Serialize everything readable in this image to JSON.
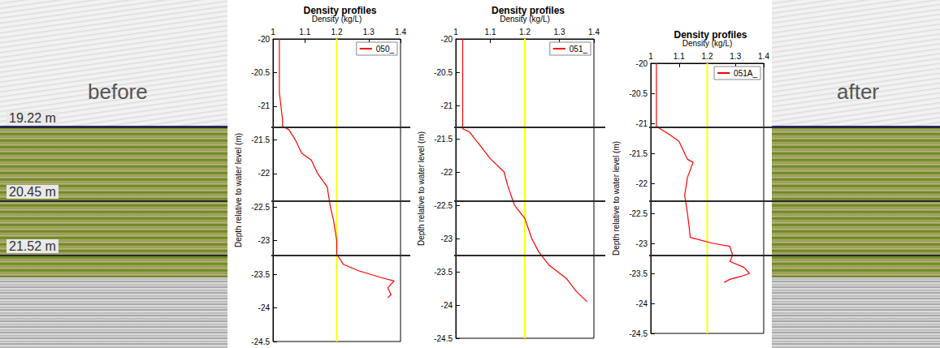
{
  "chart_data": [
    {
      "type": "line",
      "title": "Density profiles",
      "xlabel": "Density (kg/L)",
      "ylabel": "Depth relative to water level (m)",
      "xlim": [
        1,
        1.4
      ],
      "xticks": [
        1,
        1.1,
        1.2,
        1.3,
        1.4
      ],
      "ylim": [
        -24.5,
        -20
      ],
      "yticks": [
        -24.5,
        -24,
        -23.5,
        -23,
        -22.5,
        -22,
        -21.5,
        -21,
        -20.5,
        -20
      ],
      "legend": "upper right",
      "series": [
        {
          "name": "050_",
          "color": "#ff0000",
          "x": [
            1.02,
            1.02,
            1.03,
            1.03,
            1.05,
            1.07,
            1.09,
            1.12,
            1.14,
            1.17,
            1.18,
            1.19,
            1.2,
            1.2,
            1.22,
            1.27,
            1.34,
            1.38,
            1.36,
            1.37,
            1.36
          ],
          "y": [
            -20,
            -20.8,
            -21.2,
            -21.3,
            -21.35,
            -21.5,
            -21.7,
            -21.8,
            -22.0,
            -22.2,
            -22.5,
            -22.7,
            -23.0,
            -23.2,
            -23.35,
            -23.45,
            -23.55,
            -23.6,
            -23.7,
            -23.8,
            -23.85
          ]
        },
        {
          "color": "#ffff00",
          "x": [
            1.2,
            1.2
          ],
          "y": [
            -24.5,
            -20
          ]
        }
      ]
    },
    {
      "type": "line",
      "title": "Density profiles",
      "xlabel": "Density (kg/L)",
      "ylabel": "Depth relative to water level (m)",
      "xlim": [
        1,
        1.4
      ],
      "xticks": [
        1,
        1.1,
        1.2,
        1.3,
        1.4
      ],
      "ylim": [
        -24.5,
        -20
      ],
      "yticks": [
        -24.5,
        -24,
        -23.5,
        -23,
        -22.5,
        -22,
        -21.5,
        -21,
        -20.5,
        -20
      ],
      "legend": "upper right",
      "series": [
        {
          "name": "051_",
          "color": "#ff0000",
          "x": [
            1.02,
            1.02,
            1.02,
            1.04,
            1.07,
            1.1,
            1.14,
            1.15,
            1.17,
            1.2,
            1.22,
            1.24,
            1.27,
            1.32,
            1.35,
            1.38
          ],
          "y": [
            -20,
            -21.0,
            -21.35,
            -21.4,
            -21.6,
            -21.8,
            -22.0,
            -22.2,
            -22.5,
            -22.7,
            -23.0,
            -23.2,
            -23.4,
            -23.6,
            -23.8,
            -23.95
          ]
        },
        {
          "color": "#ffff00",
          "x": [
            1.2,
            1.2
          ],
          "y": [
            -24.5,
            -20
          ]
        }
      ]
    },
    {
      "type": "line",
      "title": "Density profiles",
      "xlabel": "Density (kg/L)",
      "ylabel": "Depth relative to water level (m)",
      "xlim": [
        1,
        1.4
      ],
      "xticks": [
        1,
        1.1,
        1.2,
        1.3,
        1.4
      ],
      "ylim": [
        -24.5,
        -20
      ],
      "yticks": [
        -24.5,
        -24,
        -23.5,
        -23,
        -22.5,
        -22,
        -21.5,
        -21,
        -20.5,
        -20
      ],
      "legend": "upper right",
      "series": [
        {
          "name": "051A_",
          "color": "#ff0000",
          "x": [
            1.02,
            1.02,
            1.07,
            1.1,
            1.13,
            1.15,
            1.13,
            1.12,
            1.13,
            1.14,
            1.22,
            1.28,
            1.29,
            1.28,
            1.33,
            1.35,
            1.32,
            1.28,
            1.26
          ],
          "y": [
            -20,
            -21.05,
            -21.2,
            -21.3,
            -21.6,
            -21.65,
            -21.9,
            -22.2,
            -22.5,
            -22.9,
            -23.0,
            -23.05,
            -23.2,
            -23.3,
            -23.4,
            -23.5,
            -23.55,
            -23.6,
            -23.65
          ]
        },
        {
          "color": "#ffff00",
          "x": [
            1.2,
            1.2
          ],
          "y": [
            -24.5,
            -20
          ]
        }
      ]
    }
  ],
  "image_labels": [
    "before",
    "after"
  ],
  "horizons": [
    "19.22 m",
    "20.45 m",
    "21.52 m"
  ]
}
